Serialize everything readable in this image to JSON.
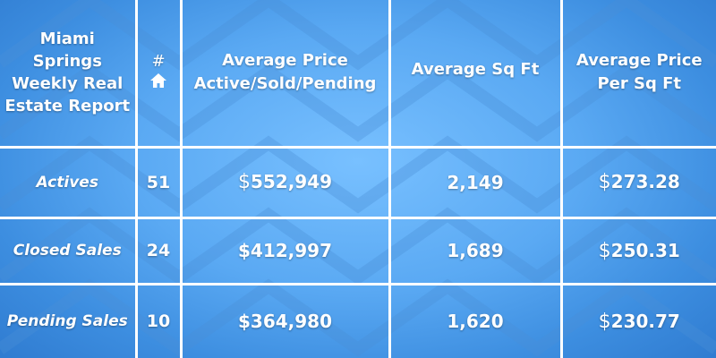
{
  "header": {
    "title": "Miami Springs Weekly Real Estate Report",
    "count_label": "#",
    "count_icon": "home-icon",
    "avg_price_label": "Average Price Active/Sold/Pending",
    "avg_sqft_label": "Average Sq Ft",
    "avg_price_sqft_label": "Average Price Per Sq Ft"
  },
  "rows": [
    {
      "label": "Actives",
      "count": "51",
      "avg_price": "552,949",
      "avg_sqft": "2,149",
      "price_per_sqft": "273.28"
    },
    {
      "label": "Closed Sales",
      "count": "24",
      "avg_price": "412,997",
      "avg_sqft": "1,689",
      "price_per_sqft": "250.31"
    },
    {
      "label": "Pending Sales",
      "count": "10",
      "avg_price": "364,980",
      "avg_sqft": "1,620",
      "price_per_sqft": "230.77"
    }
  ],
  "currency_symbol": "$",
  "colors": {
    "background": "#5aa9f3",
    "grid": "#ffffff",
    "text": "#ffffff"
  }
}
